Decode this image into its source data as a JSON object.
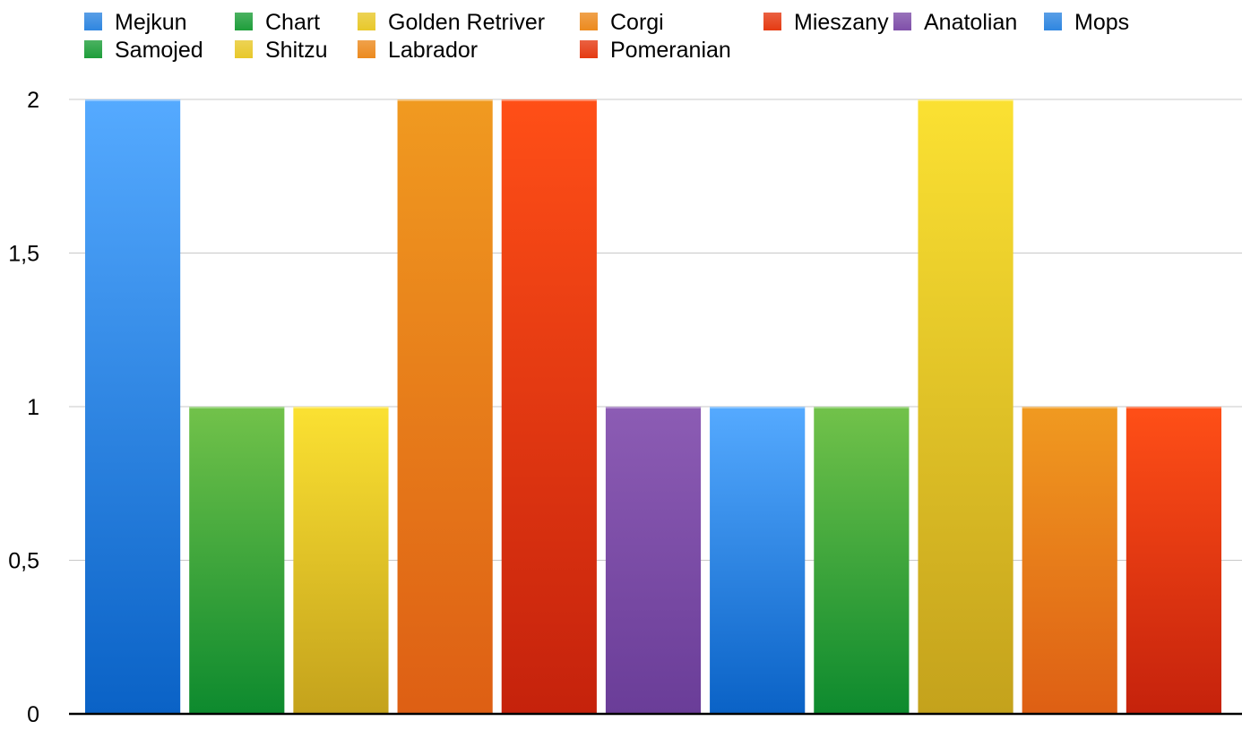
{
  "chart_data": {
    "type": "bar",
    "title": "",
    "xlabel": "",
    "ylabel": "",
    "ylim": [
      0,
      2
    ],
    "yticks": [
      {
        "value": 0,
        "label": "0"
      },
      {
        "value": 0.5,
        "label": "0,5"
      },
      {
        "value": 1,
        "label": "1"
      },
      {
        "value": 1.5,
        "label": "1,5"
      },
      {
        "value": 2,
        "label": "2"
      }
    ],
    "grid": true,
    "legend_position": "top",
    "series": [
      {
        "name": "Mejkun",
        "value": 2,
        "color_top": "#55aaff",
        "color_bottom": "#0a62c6"
      },
      {
        "name": "Samojed",
        "value": 1,
        "color_top": "#72c24a",
        "color_bottom": "#0d8a2e"
      },
      {
        "name": "Chart",
        "value": 1,
        "color_top": "#fbe132",
        "color_bottom": "#c4a21c"
      },
      {
        "name": "Shitzu",
        "value": 2,
        "color_top": "#f09a20",
        "color_bottom": "#de5f14"
      },
      {
        "name": "Golden Retriver",
        "value": 2,
        "color_top": "#ff4f17",
        "color_bottom": "#c5220c"
      },
      {
        "name": "Labrador",
        "value": 1,
        "color_top": "#8c5cb4",
        "color_bottom": "#6a3d98"
      },
      {
        "name": "Corgi",
        "value": 1,
        "color_top": "#55aaff",
        "color_bottom": "#0a62c6"
      },
      {
        "name": "Pomeranian",
        "value": 1,
        "color_top": "#72c24a",
        "color_bottom": "#0d8a2e"
      },
      {
        "name": "Mieszany",
        "value": 2,
        "color_top": "#fbe132",
        "color_bottom": "#c4a21c"
      },
      {
        "name": "Anatolian",
        "value": 1,
        "color_top": "#f09a20",
        "color_bottom": "#de5f14"
      },
      {
        "name": "Mops",
        "value": 1,
        "color_top": "#ff4f17",
        "color_bottom": "#c5220c"
      }
    ],
    "legend": [
      {
        "label": "Mejkun",
        "color": "#2f86e0"
      },
      {
        "label": "Chart",
        "color": "#1e9e3a"
      },
      {
        "label": "Golden Retriver",
        "color": "#e8c82a"
      },
      {
        "label": "Corgi",
        "color": "#ec8a1e"
      },
      {
        "label": "Mieszany",
        "color": "#e53a12"
      },
      {
        "label": "Anatolian",
        "color": "#7f4fa9"
      },
      {
        "label": "Mops",
        "color": "#2f86e0"
      },
      {
        "label": "Samojed",
        "color": "#1e9e3a"
      },
      {
        "label": "Shitzu",
        "color": "#e8c82a"
      },
      {
        "label": "Labrador",
        "color": "#ec8a1e"
      },
      {
        "label": "Pomeranian",
        "color": "#e53a12"
      }
    ]
  }
}
